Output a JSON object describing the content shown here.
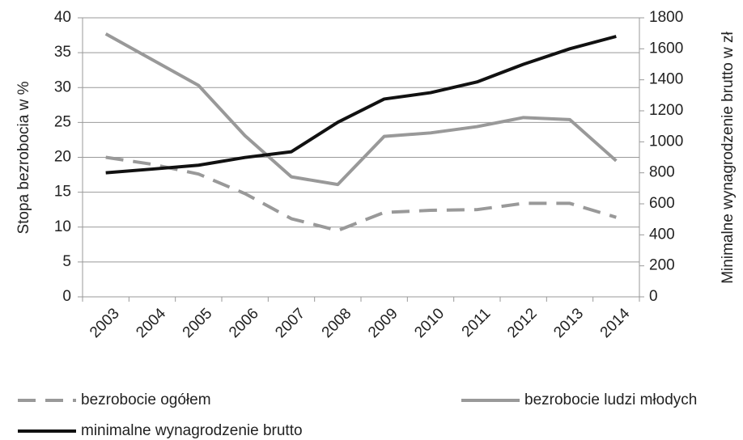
{
  "chart_data": {
    "type": "line",
    "categories": [
      "2003",
      "2004",
      "2005",
      "2006",
      "2007",
      "2008",
      "2009",
      "2010",
      "2011",
      "2012",
      "2013",
      "2014"
    ],
    "ylabel": "Stopa bezrobocia w %",
    "y2label": "Minimalne wynagrodzenie brutto w zł",
    "ylim": [
      0,
      40
    ],
    "yticks": [
      0,
      5,
      10,
      15,
      20,
      25,
      30,
      35,
      40
    ],
    "y2lim": [
      0,
      1800
    ],
    "y2ticks": [
      0,
      200,
      400,
      600,
      800,
      1000,
      1200,
      1400,
      1600,
      1800
    ],
    "grid": true,
    "series": [
      {
        "name": "bezrobocie ogółem",
        "color": "#999999",
        "dashed": true,
        "values": [
          20.0,
          19.0,
          17.6,
          14.8,
          11.2,
          9.5,
          12.1,
          12.4,
          12.5,
          13.4,
          13.4,
          11.4
        ]
      },
      {
        "name": "bezrobocie ludzi młodych",
        "color": "#999999",
        "dashed": false,
        "values": [
          37.7,
          34.0,
          30.3,
          23.1,
          17.2,
          16.1,
          23.0,
          23.5,
          24.4,
          25.7,
          25.4,
          19.5
        ]
      },
      {
        "name": "minimalne wynagrodzenie brutto",
        "color": "#111111",
        "dashed": false,
        "axis": "y2",
        "values": [
          800,
          824,
          849,
          899,
          936,
          1126,
          1276,
          1317,
          1386,
          1500,
          1600,
          1680
        ]
      }
    ]
  }
}
